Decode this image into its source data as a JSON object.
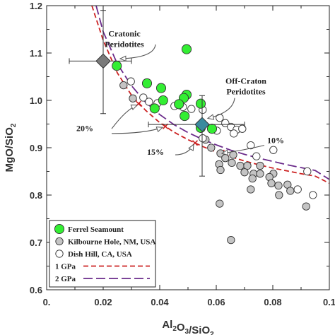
{
  "chart_data": {
    "type": "scatter",
    "xlabel": "Al2O3/SiO2",
    "ylabel": "MgO/SiO2",
    "xlim": [
      0,
      0.1
    ],
    "ylim": [
      0.6,
      1.2
    ],
    "x_ticks": [
      0,
      0.02,
      0.04,
      0.06,
      0.08,
      0.1
    ],
    "x_tick_labels": [
      "0.",
      "0.02",
      "0.04",
      "0.06",
      "0.08",
      "0.1"
    ],
    "y_ticks": [
      0.6,
      0.7,
      0.8,
      0.9,
      1.0,
      1.1,
      1.2
    ],
    "y_tick_labels": [
      "0.6",
      "0.7",
      "0.8",
      "0.9",
      "1.0",
      "1.1",
      "1.2"
    ],
    "legend_position": "bottom-left",
    "series": [
      {
        "name": "Ferrel Seamount",
        "marker": "circle",
        "fill": "#33ee33",
        "points": [
          [
            0.0495,
            1.108
          ],
          [
            0.0248,
            1.073
          ],
          [
            0.0355,
            1.036
          ],
          [
            0.0405,
            1.026
          ],
          [
            0.0495,
            1.012
          ],
          [
            0.0485,
            1.005
          ],
          [
            0.0412,
            1.0
          ],
          [
            0.0468,
            0.992
          ],
          [
            0.0545,
            0.993
          ],
          [
            0.0382,
            0.983
          ],
          [
            0.0488,
            0.967
          ],
          [
            0.0545,
            0.942
          ],
          [
            0.0585,
            0.94
          ]
        ]
      },
      {
        "name": "Kilbourne Hole, NM, USA",
        "marker": "circle",
        "fill": "#c4c4c4",
        "points": [
          [
            0.0272,
            1.032
          ],
          [
            0.0305,
            1.004
          ],
          [
            0.0562,
            0.917
          ],
          [
            0.0582,
            0.9
          ],
          [
            0.0615,
            0.888
          ],
          [
            0.066,
            0.885
          ],
          [
            0.0632,
            0.878
          ],
          [
            0.061,
            0.865
          ],
          [
            0.0615,
            0.853
          ],
          [
            0.0655,
            0.868
          ],
          [
            0.0685,
            0.862
          ],
          [
            0.071,
            0.862
          ],
          [
            0.0755,
            0.862
          ],
          [
            0.07,
            0.848
          ],
          [
            0.0732,
            0.845
          ],
          [
            0.0755,
            0.845
          ],
          [
            0.0802,
            0.845
          ],
          [
            0.0728,
            0.835
          ],
          [
            0.0788,
            0.838
          ],
          [
            0.082,
            0.82
          ],
          [
            0.0795,
            0.825
          ],
          [
            0.0852,
            0.822
          ],
          [
            0.0862,
            0.809
          ],
          [
            0.0722,
            0.812
          ],
          [
            0.0822,
            0.8
          ],
          [
            0.0612,
            0.782
          ],
          [
            0.0918,
            0.776
          ],
          [
            0.0652,
            0.705
          ]
        ]
      },
      {
        "name": "Dish Hill, CA, USA",
        "marker": "circle",
        "fill": "#ffffff",
        "points": [
          [
            0.0298,
            1.04
          ],
          [
            0.0342,
            1.006
          ],
          [
            0.0362,
            0.997
          ],
          [
            0.0392,
            0.994
          ],
          [
            0.0452,
            0.988
          ],
          [
            0.0482,
            0.986
          ],
          [
            0.0512,
            0.982
          ],
          [
            0.0552,
            0.98
          ],
          [
            0.0612,
            0.963
          ],
          [
            0.0632,
            0.952
          ],
          [
            0.0652,
            0.944
          ],
          [
            0.0672,
            0.938
          ],
          [
            0.0692,
            0.94
          ],
          [
            0.0602,
            0.936
          ],
          [
            0.0662,
            0.93
          ],
          [
            0.0552,
            0.92
          ],
          [
            0.0722,
            0.905
          ],
          [
            0.0802,
            0.895
          ],
          [
            0.0742,
            0.882
          ],
          [
            0.0922,
            0.85
          ],
          [
            0.0888,
            0.812
          ],
          [
            0.0942,
            0.8
          ]
        ]
      }
    ],
    "curves": [
      {
        "name": "1 GPa",
        "style": "dashed",
        "color": "#cc2222",
        "x": [
          0.016,
          0.02,
          0.025,
          0.03,
          0.035,
          0.04,
          0.045,
          0.05,
          0.055,
          0.06,
          0.065,
          0.07,
          0.075,
          0.08,
          0.085,
          0.09,
          0.095,
          0.1
        ],
        "y": [
          1.2,
          1.127,
          1.058,
          1.011,
          0.979,
          0.953,
          0.933,
          0.917,
          0.903,
          0.891,
          0.881,
          0.872,
          0.864,
          0.857,
          0.851,
          0.845,
          0.84,
          0.825
        ]
      },
      {
        "name": "2 GPa",
        "style": "long-dashed",
        "color": "#6a2a8a",
        "x": [
          0.0175,
          0.02,
          0.025,
          0.03,
          0.035,
          0.04,
          0.045,
          0.05,
          0.055,
          0.06,
          0.065,
          0.07,
          0.075,
          0.08,
          0.085,
          0.09,
          0.095,
          0.1
        ],
        "y": [
          1.2,
          1.145,
          1.077,
          1.031,
          0.996,
          0.97,
          0.949,
          0.932,
          0.918,
          0.906,
          0.895,
          0.886,
          0.878,
          0.871,
          0.864,
          0.858,
          0.852,
          0.833
        ]
      }
    ],
    "melt_marks": [
      {
        "x": 0.0325,
        "y": 0.993
      },
      {
        "x": 0.042,
        "y": 0.945
      },
      {
        "x": 0.0525,
        "y": 0.91
      },
      {
        "x": 0.062,
        "y": 0.89
      }
    ],
    "reference_points": [
      {
        "name": "Cratonic Peridotites",
        "x": 0.02,
        "y": 1.083,
        "x_err": [
          0.008,
          0.03
        ],
        "y_err": [
          0.972,
          1.19
        ],
        "fill": "#7a7a7a"
      },
      {
        "name": "Off-Craton Peridotites",
        "x": 0.055,
        "y": 0.949,
        "x_err": [
          0.036,
          0.07
        ],
        "y_err": [
          0.84,
          1.01
        ],
        "fill": "#3a8a9e"
      }
    ],
    "annotations": [
      {
        "text_lines": [
          "Cratonic",
          "Peridotites"
        ],
        "x": 0.0275,
        "y": 1.135
      },
      {
        "text_lines": [
          "Off-Craton",
          "Peridotites"
        ],
        "x": 0.0705,
        "y": 1.035
      },
      {
        "text_lines": [
          "20%"
        ],
        "x": 0.0135,
        "y": 0.935
      },
      {
        "text_lines": [
          "15%"
        ],
        "x": 0.0385,
        "y": 0.885
      },
      {
        "text_lines": [
          "10%"
        ],
        "x": 0.081,
        "y": 0.91
      }
    ],
    "legend": [
      {
        "label": "Ferrel Seamount",
        "kind": "marker",
        "fill": "#33ee33"
      },
      {
        "label": "Kilbourne Hole, NM, USA",
        "kind": "marker",
        "fill": "#c4c4c4"
      },
      {
        "label": "Dish Hill, CA, USA",
        "kind": "marker",
        "fill": "#ffffff"
      },
      {
        "label": "1 GPa",
        "kind": "line",
        "color": "#cc2222",
        "style": "dashed"
      },
      {
        "label": "2 GPa",
        "kind": "line",
        "color": "#6a2a8a",
        "style": "long-dashed"
      }
    ]
  }
}
